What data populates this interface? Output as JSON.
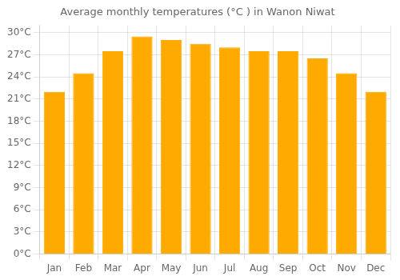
{
  "chart_data": {
    "type": "bar",
    "title": "Average monthly temperatures (°C ) in Wanon Niwat",
    "categories": [
      "Jan",
      "Feb",
      "Mar",
      "Apr",
      "May",
      "Jun",
      "Jul",
      "Aug",
      "Sep",
      "Oct",
      "Nov",
      "Dec"
    ],
    "values": [
      22.0,
      24.5,
      27.5,
      29.5,
      29.0,
      28.5,
      28.0,
      27.5,
      27.5,
      26.5,
      24.5,
      22.0
    ],
    "color": "#FFAA00",
    "ylim": [
      0,
      31
    ],
    "yticks": [
      {
        "value": 0,
        "label": "0°C"
      },
      {
        "value": 3,
        "label": "3°C"
      },
      {
        "value": 6,
        "label": "6°C"
      },
      {
        "value": 9,
        "label": "9°C"
      },
      {
        "value": 12,
        "label": "12°C"
      },
      {
        "value": 15,
        "label": "15°C"
      },
      {
        "value": 18,
        "label": "18°C"
      },
      {
        "value": 21,
        "label": "21°C"
      },
      {
        "value": 24,
        "label": "24°C"
      },
      {
        "value": 27,
        "label": "27°C"
      },
      {
        "value": 30,
        "label": "30°C"
      }
    ],
    "grid": true
  }
}
